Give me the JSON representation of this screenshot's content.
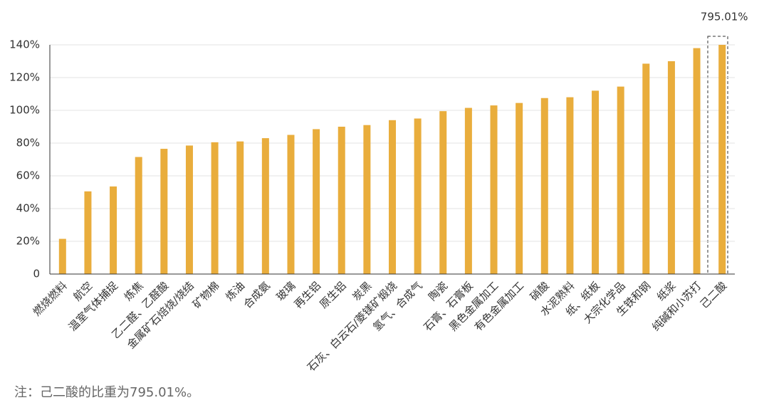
{
  "chart_data": {
    "type": "bar",
    "categories": [
      "燃烧燃料",
      "航空",
      "温室气体捕捉",
      "炼焦",
      "乙二醛、乙醛酸",
      "金属矿石焙烧/烧结",
      "矿物棉",
      "炼油",
      "合成氨",
      "玻璃",
      "再生铝",
      "原生铝",
      "炭黑",
      "石灰、白云石/菱镁矿煅烧",
      "氢气、合成气",
      "陶瓷",
      "石膏、石膏板",
      "黑色金属加工",
      "有色金属加工",
      "硝酸",
      "水泥熟料",
      "纸、纸板",
      "大宗化学品",
      "生铁和钢",
      "纸浆",
      "纯碱和小苏打",
      "己二酸"
    ],
    "values": [
      21.5,
      50.5,
      53.5,
      71.5,
      76.5,
      78.5,
      80.5,
      81,
      83,
      85,
      88.5,
      90,
      91,
      94,
      95,
      99.5,
      101.5,
      103,
      104.5,
      107.5,
      108,
      112,
      114.5,
      128.5,
      130,
      138,
      795.01
    ],
    "value_labels": [
      null,
      null,
      null,
      null,
      null,
      null,
      null,
      null,
      null,
      null,
      null,
      null,
      null,
      null,
      null,
      null,
      null,
      null,
      null,
      null,
      null,
      null,
      null,
      null,
      null,
      null,
      "795.01%"
    ],
    "color": "#e9ad3c",
    "ylim": [
      0,
      140
    ],
    "yticks": [
      0,
      {
        "value": 20,
        "label": "20%"
      },
      {
        "value": 40,
        "label": "40%"
      },
      {
        "value": 60,
        "label": "60%"
      },
      {
        "value": 80,
        "label": "80%"
      },
      {
        "value": 100,
        "label": "100%"
      },
      {
        "value": 120,
        "label": "120%"
      },
      {
        "value": 140,
        "label": "140%"
      }
    ],
    "grid": true,
    "note": "注：己二酸的比重为795.01%。"
  }
}
